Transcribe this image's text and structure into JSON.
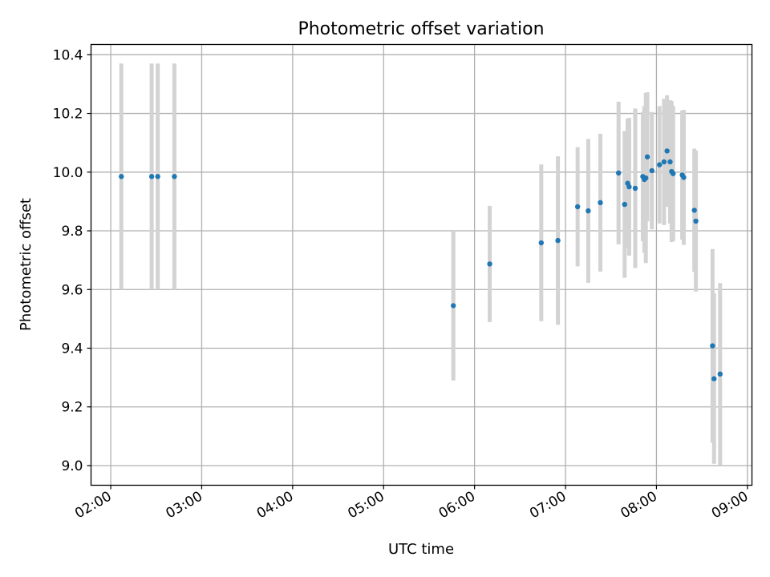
{
  "chart_data": {
    "type": "scatter",
    "title": "Photometric offset variation",
    "xlabel": "UTC time",
    "ylabel": "Photometric offset",
    "x_unit": "hours UTC",
    "xlim": [
      "01:47",
      "09:03"
    ],
    "ylim": [
      8.933,
      10.435
    ],
    "xticks": [
      {
        "label": "02:00",
        "value": "02:00"
      },
      {
        "label": "03:00",
        "value": "03:00"
      },
      {
        "label": "04:00",
        "value": "04:00"
      },
      {
        "label": "05:00",
        "value": "05:00"
      },
      {
        "label": "06:00",
        "value": "06:00"
      },
      {
        "label": "07:00",
        "value": "07:00"
      },
      {
        "label": "08:00",
        "value": "08:00"
      },
      {
        "label": "09:00",
        "value": "09:00"
      }
    ],
    "yticks": [
      {
        "label": "9.0",
        "value": 9.0
      },
      {
        "label": "9.2",
        "value": 9.2
      },
      {
        "label": "9.4",
        "value": 9.4
      },
      {
        "label": "9.6",
        "value": 9.6
      },
      {
        "label": "9.8",
        "value": 9.8
      },
      {
        "label": "10.0",
        "value": 10.0
      },
      {
        "label": "10.2",
        "value": 10.2
      },
      {
        "label": "10.4",
        "value": 10.4
      }
    ],
    "grid": true,
    "points": [
      {
        "x": "02:07",
        "y": 9.985,
        "err": 0.385
      },
      {
        "x": "02:27",
        "y": 9.985,
        "err": 0.385
      },
      {
        "x": "02:31",
        "y": 9.985,
        "err": 0.385
      },
      {
        "x": "02:42",
        "y": 9.985,
        "err": 0.385
      },
      {
        "x": "05:46",
        "y": 9.545,
        "err": 0.255
      },
      {
        "x": "06:10",
        "y": 9.687,
        "err": 0.198
      },
      {
        "x": "06:44",
        "y": 9.759,
        "err": 0.267
      },
      {
        "x": "06:55",
        "y": 9.767,
        "err": 0.287
      },
      {
        "x": "07:08",
        "y": 9.882,
        "err": 0.203
      },
      {
        "x": "07:15",
        "y": 9.868,
        "err": 0.245
      },
      {
        "x": "07:23",
        "y": 9.896,
        "err": 0.235
      },
      {
        "x": "07:35",
        "y": 9.997,
        "err": 0.243
      },
      {
        "x": "07:39",
        "y": 9.89,
        "err": 0.25
      },
      {
        "x": "07:41",
        "y": 9.962,
        "err": 0.22
      },
      {
        "x": "07:42",
        "y": 9.95,
        "err": 0.235
      },
      {
        "x": "07:46",
        "y": 9.945,
        "err": 0.272
      },
      {
        "x": "07:51",
        "y": 9.985,
        "err": 0.22
      },
      {
        "x": "07:52",
        "y": 9.975,
        "err": 0.25
      },
      {
        "x": "07:53",
        "y": 9.98,
        "err": 0.29
      },
      {
        "x": "07:54",
        "y": 10.052,
        "err": 0.22
      },
      {
        "x": "07:57",
        "y": 10.005,
        "err": 0.2
      },
      {
        "x": "08:02",
        "y": 10.025,
        "err": 0.2
      },
      {
        "x": "08:05",
        "y": 10.035,
        "err": 0.215
      },
      {
        "x": "08:07",
        "y": 10.072,
        "err": 0.19
      },
      {
        "x": "08:09",
        "y": 10.035,
        "err": 0.21
      },
      {
        "x": "08:10",
        "y": 10.002,
        "err": 0.24
      },
      {
        "x": "08:11",
        "y": 9.995,
        "err": 0.23
      },
      {
        "x": "08:17",
        "y": 9.99,
        "err": 0.22
      },
      {
        "x": "08:18",
        "y": 9.982,
        "err": 0.23
      },
      {
        "x": "08:25",
        "y": 9.87,
        "err": 0.21
      },
      {
        "x": "08:26",
        "y": 9.833,
        "err": 0.24
      },
      {
        "x": "08:37",
        "y": 9.408,
        "err": 0.33
      },
      {
        "x": "08:38",
        "y": 9.296,
        "err": 0.29
      },
      {
        "x": "08:42",
        "y": 9.312,
        "err": 0.31
      }
    ],
    "colors": {
      "point": "#1f77b4",
      "errorbar": "#d3d3d3",
      "grid": "#b0b0b0",
      "axes": "#000000"
    }
  }
}
